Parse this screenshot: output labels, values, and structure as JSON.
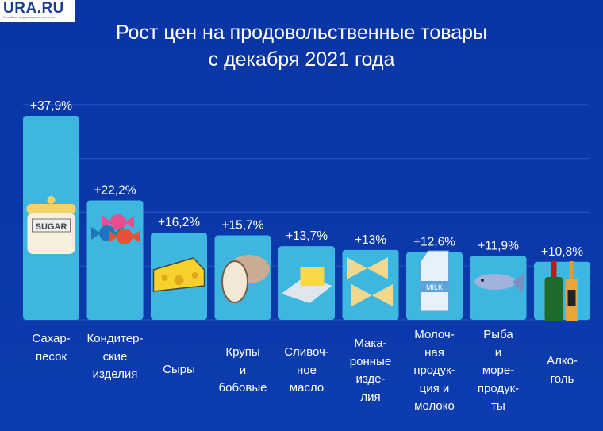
{
  "logo": {
    "text": "URA.RU",
    "subtitle": "Российское информационное агентство"
  },
  "chart_data": {
    "type": "bar",
    "title": "Рост цен на продовольственные товары\nс декабря 2021 года",
    "title_lines": [
      "Рост цен на продовольственные товары",
      "с декабря 2021 года"
    ],
    "xlabel": "",
    "ylabel": "",
    "ylim": [
      0,
      40
    ],
    "grid": true,
    "categories": [
      "Сахар-\nпесок",
      "Кондитер-\nские\nизделия",
      "Сыры",
      "Крупы\nи\nбобовые",
      "Сливоч-\nное\nмасло",
      "Мака-\nронные\nизде-\nлия",
      "Молоч-\nная\nпродук-\nция и\nмолоко",
      "Рыба\nи\nморе-\nпродук-\nты",
      "Алко-\nголь"
    ],
    "values": [
      37.9,
      22.2,
      16.2,
      15.7,
      13.7,
      13,
      12.6,
      11.9,
      10.8
    ],
    "data_labels": [
      "+37,9%",
      "+22,2%",
      "+16,2%",
      "+15,7%",
      "+13,7%",
      "+13%",
      "+12,6%",
      "+11,9%",
      "+10,8%"
    ],
    "icons": [
      "sugar-jar-icon",
      "candy-icon",
      "cheese-icon",
      "beans-icon",
      "butter-icon",
      "pasta-icon",
      "milk-carton-icon",
      "fish-icon",
      "alcohol-bottles-icon"
    ],
    "icon_text": {
      "sugar": "SUGAR",
      "milk": "MILK"
    },
    "colors": {
      "bar": "#3db6e0",
      "grid": "#2353c0",
      "background": "#0b37a6"
    }
  }
}
